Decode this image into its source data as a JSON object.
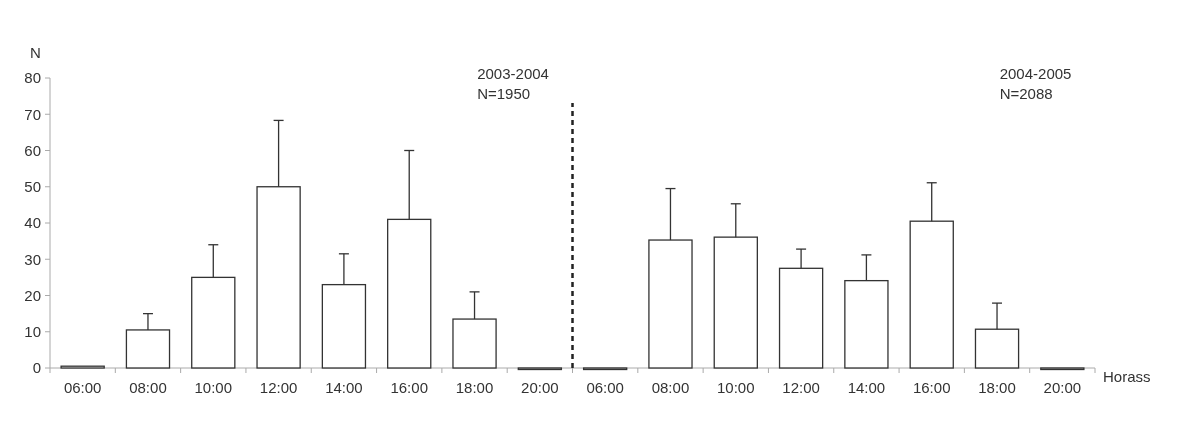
{
  "chart_data": {
    "type": "bar",
    "xlabel": "Horass",
    "ylabel": "N",
    "categories": [
      "06:00",
      "08:00",
      "10:00",
      "12:00",
      "14:00",
      "16:00",
      "18:00",
      "20:00",
      "06:00",
      "08:00",
      "10:00",
      "12:00",
      "14:00",
      "16:00",
      "18:00",
      "20:00"
    ],
    "values": [
      0.5,
      10.5,
      25,
      50,
      23,
      41,
      13.5,
      0,
      0,
      35.3,
      36.1,
      27.5,
      24.1,
      40.5,
      10.7,
      0
    ],
    "errors": [
      null,
      [
        10.5,
        15
      ],
      [
        25,
        34
      ],
      [
        50,
        68.3
      ],
      [
        23,
        31.5
      ],
      [
        41,
        60
      ],
      [
        13.5,
        21
      ],
      null,
      null,
      [
        35.3,
        49.5
      ],
      [
        36.1,
        45.3
      ],
      [
        27.5,
        32.8
      ],
      [
        24.1,
        31.2
      ],
      [
        40.5,
        51.1
      ],
      [
        10.7,
        17.9
      ],
      null
    ],
    "color": "#ffffff",
    "ylim": [
      0,
      80
    ],
    "yticks": [
      0,
      10,
      20,
      30,
      40,
      50,
      60,
      70,
      80
    ],
    "grid": false,
    "annotations": [
      "2003-2004\nN=1950",
      "2004-2005\nN=2088"
    ]
  }
}
